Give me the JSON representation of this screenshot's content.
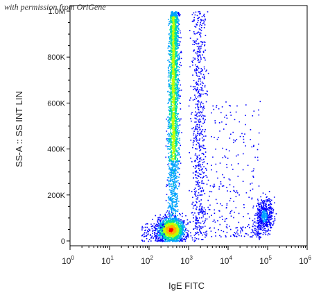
{
  "credit": "with permission from OriGene",
  "chart_data": {
    "type": "scatter",
    "plot_style": "density dot plot (flow cytometry)",
    "title": "",
    "xlabel": "IgE FITC",
    "ylabel": "SS-A :: SS INT LIN",
    "x_scale": "log",
    "xlim": [
      1,
      1000000
    ],
    "ylim": [
      0,
      1000000
    ],
    "x_ticks": [
      {
        "base": "10",
        "exp": "0"
      },
      {
        "base": "10",
        "exp": "1"
      },
      {
        "base": "10",
        "exp": "2"
      },
      {
        "base": "10",
        "exp": "3"
      },
      {
        "base": "10",
        "exp": "4"
      },
      {
        "base": "10",
        "exp": "5"
      },
      {
        "base": "10",
        "exp": "6"
      }
    ],
    "y_ticks": [
      {
        "value": 0,
        "label": "0"
      },
      {
        "value": 200000,
        "label": "200K"
      },
      {
        "value": 400000,
        "label": "400K"
      },
      {
        "value": 600000,
        "label": "600K"
      },
      {
        "value": 800000,
        "label": "800K"
      },
      {
        "value": 1000000,
        "label": "1.0M"
      }
    ],
    "density_colors": [
      "#0000ff",
      "#00a0ff",
      "#00e0a0",
      "#c0ff00",
      "#ffb000",
      "#ff0000"
    ],
    "populations": [
      {
        "x_range": [
          100,
          1000
        ],
        "y_range": [
          0,
          1000000
        ],
        "x_center": 400,
        "y_center": 700000,
        "relative_density": "high"
      },
      {
        "x_range": [
          100,
          900
        ],
        "y_range": [
          0,
          120000
        ],
        "x_center": 350,
        "y_center": 50000,
        "relative_density": "highest"
      },
      {
        "x_range": [
          1000,
          3000
        ],
        "y_range": [
          0,
          1000000
        ],
        "x_center": 1800,
        "y_center": 600000,
        "relative_density": "low"
      },
      {
        "x_range": [
          40000,
          130000
        ],
        "y_range": [
          40000,
          250000
        ],
        "x_center": 80000,
        "y_center": 110000,
        "relative_density": "medium"
      },
      {
        "x_range": [
          5000,
          40000
        ],
        "y_range": [
          50000,
          900000
        ],
        "x_center": 15000,
        "y_center": 300000,
        "relative_density": "sparse"
      }
    ]
  }
}
